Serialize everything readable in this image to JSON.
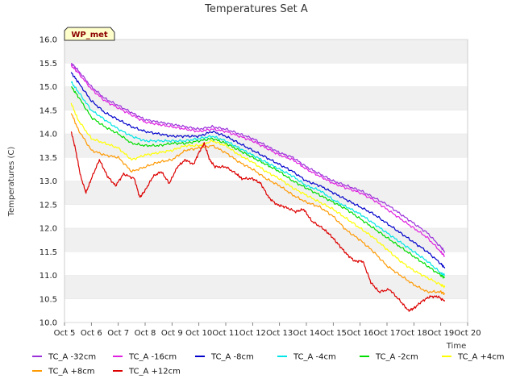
{
  "chart_data": {
    "type": "line",
    "title": "Temperatures Set A",
    "xlabel": "Time",
    "ylabel": "Temperatures (C)",
    "ylim": [
      10.0,
      16.0
    ],
    "xlim": [
      5,
      20
    ],
    "x_ticks": [
      {
        "value": 5,
        "label": "Oct 5"
      },
      {
        "value": 6,
        "label": "Oct 6"
      },
      {
        "value": 7,
        "label": "Oct 7"
      },
      {
        "value": 8,
        "label": "Oct 8"
      },
      {
        "value": 9,
        "label": "Oct 9"
      },
      {
        "value": 10,
        "label": "Oct 10"
      },
      {
        "value": 11,
        "label": "Oct 11"
      },
      {
        "value": 12,
        "label": "Oct 12"
      },
      {
        "value": 13,
        "label": "Oct 13"
      },
      {
        "value": 14,
        "label": "Oct 14"
      },
      {
        "value": 15,
        "label": "Oct 15"
      },
      {
        "value": 16,
        "label": "Oct 16"
      },
      {
        "value": 17,
        "label": "Oct 17"
      },
      {
        "value": 18,
        "label": "Oct 18"
      },
      {
        "value": 19,
        "label": "Oct 19"
      },
      {
        "value": 20,
        "label": "Oct 20"
      }
    ],
    "y_ticks": [
      "10.0",
      "10.5",
      "11.0",
      "11.5",
      "12.0",
      "12.5",
      "13.0",
      "13.5",
      "14.0",
      "14.5",
      "15.0",
      "15.5",
      "16.0"
    ],
    "background_bands": true,
    "badge": "WP_met",
    "legend_position": "bottom",
    "series": [
      {
        "name": "TC_A -32cm",
        "color": "#9b30d9",
        "x": [
          5.25,
          5.5,
          6,
          6.5,
          7,
          7.5,
          8,
          8.5,
          9,
          9.5,
          10,
          10.5,
          11,
          11.5,
          12,
          12.5,
          13,
          13.5,
          14,
          14.5,
          15,
          15.5,
          16,
          16.5,
          17,
          17.5,
          18,
          18.5,
          19,
          19.15
        ],
        "y": [
          15.5,
          15.35,
          15.0,
          14.75,
          14.6,
          14.45,
          14.3,
          14.25,
          14.2,
          14.15,
          14.1,
          14.15,
          14.1,
          14.0,
          13.9,
          13.75,
          13.6,
          13.5,
          13.3,
          13.15,
          13.0,
          12.9,
          12.8,
          12.65,
          12.5,
          12.3,
          12.1,
          11.9,
          11.6,
          11.5
        ]
      },
      {
        "name": "TC_A -16cm",
        "color": "#e020e0",
        "x": [
          5.25,
          5.5,
          6,
          6.5,
          7,
          7.5,
          8,
          8.5,
          9,
          9.5,
          10,
          10.5,
          11,
          11.5,
          12,
          12.5,
          13,
          13.5,
          14,
          14.5,
          15,
          15.5,
          16,
          16.5,
          17,
          17.5,
          18,
          18.5,
          19,
          19.15
        ],
        "y": [
          15.45,
          15.3,
          14.95,
          14.7,
          14.55,
          14.4,
          14.25,
          14.2,
          14.15,
          14.1,
          14.05,
          14.1,
          14.05,
          13.95,
          13.85,
          13.7,
          13.55,
          13.45,
          13.25,
          13.1,
          12.95,
          12.85,
          12.75,
          12.6,
          12.4,
          12.2,
          12.0,
          11.8,
          11.5,
          11.4
        ]
      },
      {
        "name": "TC_A -8cm",
        "color": "#0000cc",
        "x": [
          5.25,
          5.5,
          6,
          6.5,
          7,
          7.5,
          8,
          8.5,
          9,
          9.5,
          10,
          10.5,
          11,
          11.5,
          12,
          12.5,
          13,
          13.5,
          14,
          14.5,
          15,
          15.5,
          16,
          16.5,
          17,
          17.5,
          18,
          18.5,
          19,
          19.15
        ],
        "y": [
          15.3,
          15.1,
          14.7,
          14.45,
          14.3,
          14.15,
          14.05,
          14.0,
          13.95,
          13.95,
          13.95,
          14.05,
          13.95,
          13.8,
          13.65,
          13.5,
          13.35,
          13.2,
          13.0,
          12.9,
          12.75,
          12.6,
          12.45,
          12.3,
          12.1,
          11.9,
          11.7,
          11.5,
          11.25,
          11.15
        ]
      },
      {
        "name": "TC_A -4cm",
        "color": "#00e5e5",
        "x": [
          5.25,
          5.5,
          6,
          6.5,
          7,
          7.5,
          8,
          8.5,
          9,
          9.5,
          10,
          10.5,
          11,
          11.5,
          12,
          12.5,
          13,
          13.5,
          14,
          14.5,
          15,
          15.5,
          16,
          16.5,
          17,
          17.5,
          18,
          18.5,
          19,
          19.15
        ],
        "y": [
          15.1,
          14.9,
          14.5,
          14.3,
          14.1,
          13.95,
          13.85,
          13.85,
          13.85,
          13.85,
          13.9,
          13.95,
          13.85,
          13.7,
          13.55,
          13.4,
          13.25,
          13.1,
          12.9,
          12.8,
          12.6,
          12.45,
          12.3,
          12.1,
          11.9,
          11.7,
          11.5,
          11.3,
          11.05,
          11.0
        ]
      },
      {
        "name": "TC_A -2cm",
        "color": "#00dd00",
        "x": [
          5.25,
          5.5,
          6,
          6.5,
          7,
          7.5,
          8,
          8.5,
          9,
          9.5,
          10,
          10.5,
          11,
          11.5,
          12,
          12.5,
          13,
          13.5,
          14,
          14.5,
          15,
          15.5,
          16,
          16.5,
          17,
          17.5,
          18,
          18.5,
          19,
          19.15
        ],
        "y": [
          15.0,
          14.8,
          14.35,
          14.15,
          14.0,
          13.8,
          13.75,
          13.75,
          13.8,
          13.8,
          13.85,
          13.9,
          13.8,
          13.65,
          13.5,
          13.35,
          13.2,
          13.0,
          12.85,
          12.7,
          12.55,
          12.4,
          12.2,
          12.0,
          11.8,
          11.6,
          11.4,
          11.2,
          11.0,
          10.95
        ]
      },
      {
        "name": "TC_A +4cm",
        "color": "#ffff00",
        "x": [
          5.25,
          5.5,
          6,
          6.5,
          7,
          7.5,
          8,
          8.5,
          9,
          9.5,
          10,
          10.5,
          11,
          11.5,
          12,
          12.5,
          13,
          13.5,
          14,
          14.5,
          15,
          15.5,
          16,
          16.5,
          17,
          17.5,
          18,
          18.5,
          19,
          19.15
        ],
        "y": [
          14.65,
          14.3,
          13.9,
          13.8,
          13.7,
          13.45,
          13.55,
          13.6,
          13.65,
          13.75,
          13.75,
          13.85,
          13.75,
          13.55,
          13.4,
          13.2,
          13.05,
          12.85,
          12.7,
          12.55,
          12.4,
          12.2,
          12.0,
          11.8,
          11.55,
          11.3,
          11.1,
          10.95,
          10.8,
          10.75
        ]
      },
      {
        "name": "TC_A +8cm",
        "color": "#ff9900",
        "x": [
          5.25,
          5.5,
          6,
          6.5,
          7,
          7.5,
          8,
          8.5,
          9,
          9.5,
          10,
          10.5,
          11,
          11.5,
          12,
          12.5,
          13,
          13.5,
          14,
          14.5,
          15,
          15.5,
          16,
          16.5,
          17,
          17.5,
          18,
          18.5,
          19,
          19.15
        ],
        "y": [
          14.45,
          14.1,
          13.65,
          13.55,
          13.5,
          13.2,
          13.3,
          13.4,
          13.45,
          13.65,
          13.7,
          13.75,
          13.6,
          13.4,
          13.25,
          13.05,
          12.9,
          12.7,
          12.55,
          12.45,
          12.25,
          11.95,
          11.75,
          11.5,
          11.2,
          11.0,
          10.8,
          10.65,
          10.65,
          10.6
        ]
      },
      {
        "name": "TC_A +12cm",
        "color": "#dd0000",
        "x": [
          5.25,
          5.4,
          5.6,
          5.8,
          6,
          6.3,
          6.6,
          6.9,
          7.2,
          7.6,
          7.8,
          8,
          8.3,
          8.6,
          8.9,
          9.2,
          9.5,
          9.8,
          10,
          10.2,
          10.4,
          10.6,
          11,
          11.4,
          11.6,
          12,
          12.3,
          12.6,
          12.9,
          13.2,
          13.6,
          13.9,
          14.2,
          14.6,
          14.9,
          15.2,
          15.5,
          15.8,
          16.1,
          16.4,
          16.7,
          17.1,
          17.5,
          17.8,
          18,
          18.3,
          18.6,
          18.9,
          19.15
        ],
        "y": [
          14.05,
          13.7,
          13.1,
          12.75,
          13.05,
          13.45,
          13.1,
          12.9,
          13.15,
          13.05,
          12.65,
          12.8,
          13.1,
          13.2,
          12.95,
          13.3,
          13.45,
          13.35,
          13.6,
          13.8,
          13.45,
          13.3,
          13.3,
          13.15,
          13.05,
          13.05,
          12.95,
          12.65,
          12.5,
          12.45,
          12.35,
          12.4,
          12.15,
          12.0,
          11.85,
          11.65,
          11.45,
          11.3,
          11.3,
          10.85,
          10.65,
          10.7,
          10.45,
          10.25,
          10.3,
          10.45,
          10.55,
          10.55,
          10.45
        ]
      }
    ]
  }
}
